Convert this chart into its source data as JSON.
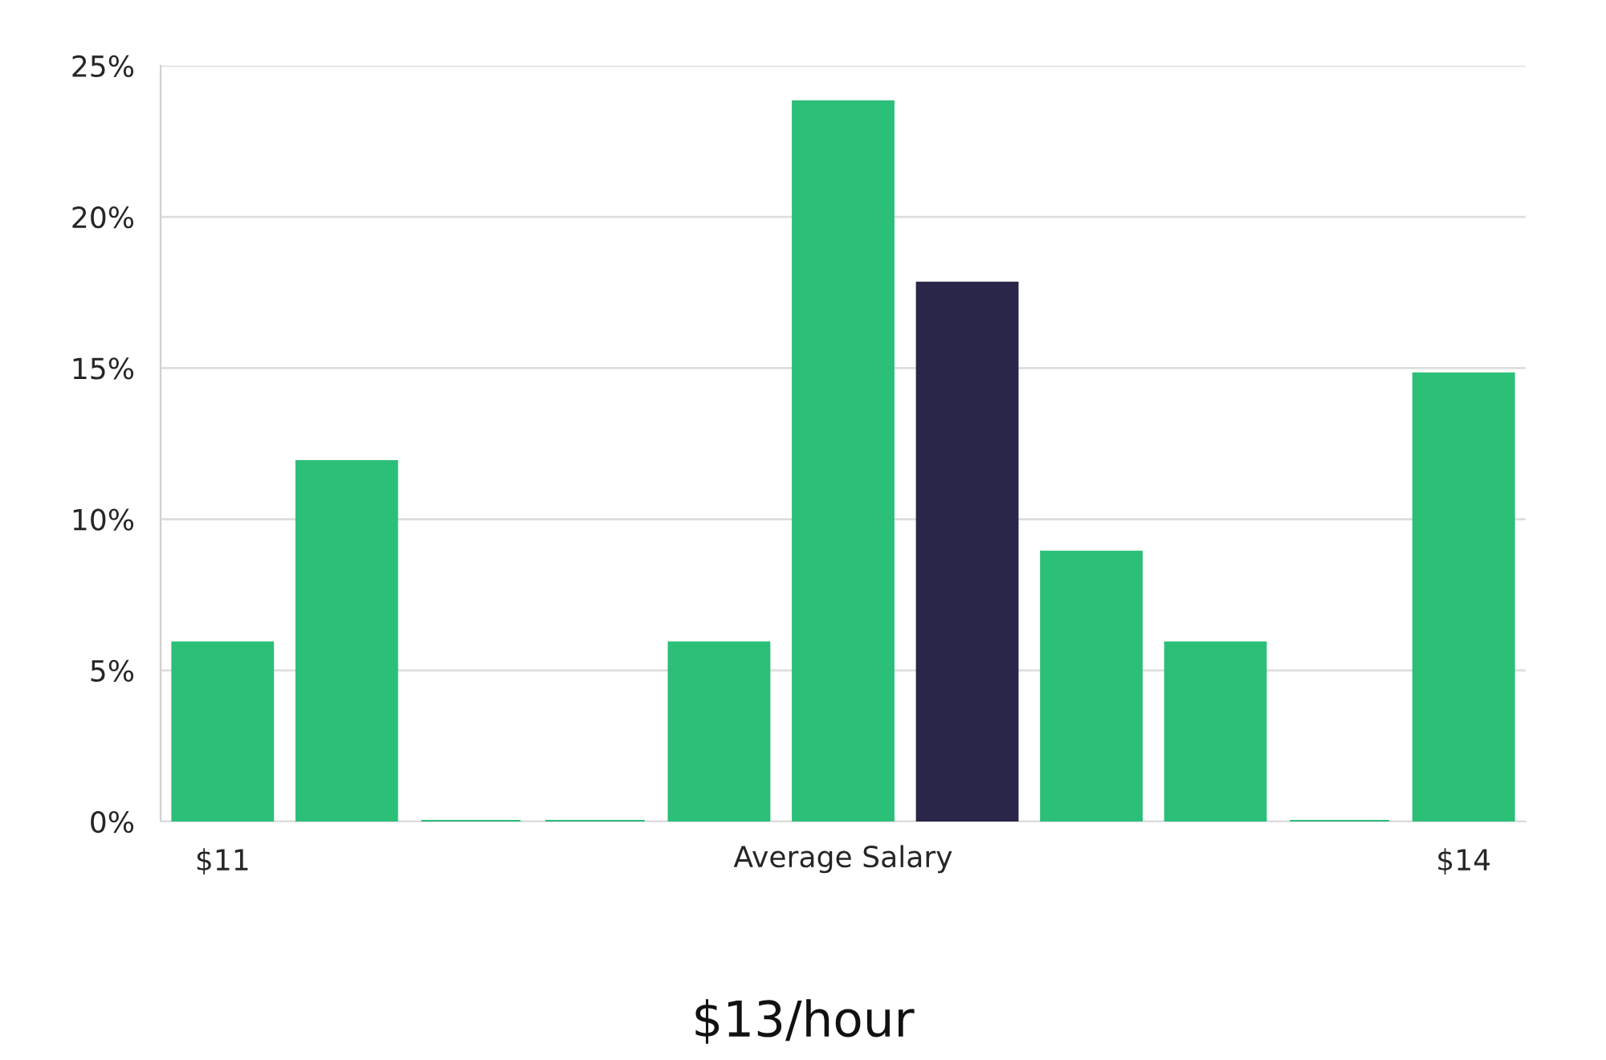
{
  "chart_data": {
    "type": "bar",
    "title": "$13/hour",
    "xlabel": "Average Salary",
    "categories": [
      "$11",
      null,
      null,
      null,
      null,
      null,
      null,
      null,
      null,
      null,
      "$14"
    ],
    "values": [
      5.9,
      11.9,
      0,
      0,
      5.9,
      23.8,
      17.8,
      8.9,
      5.9,
      0,
      14.8
    ],
    "colors": [
      "#2bbf78",
      "#2bbf78",
      "#2bbf78",
      "#2bbf78",
      "#2bbf78",
      "#2bbf78",
      "#29264a",
      "#2bbf78",
      "#2bbf78",
      "#2bbf78",
      "#2bbf78"
    ],
    "ylim": [
      0,
      25
    ],
    "yticks": [
      {
        "value": 0,
        "label": "0%"
      },
      {
        "value": 5,
        "label": "5%"
      },
      {
        "value": 10,
        "label": "10%"
      },
      {
        "value": 15,
        "label": "15%"
      },
      {
        "value": 20,
        "label": "20%"
      },
      {
        "value": 25,
        "label": "25%"
      }
    ],
    "grid": "y",
    "legend": false
  }
}
